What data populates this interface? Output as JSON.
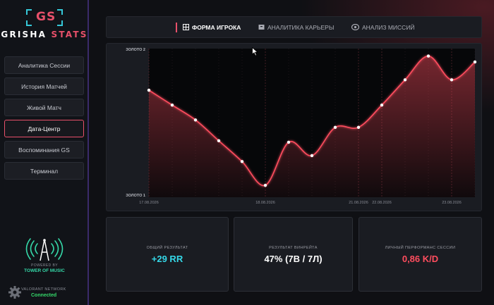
{
  "brand": {
    "gs": "GS",
    "name_part1": "GRISHA ",
    "name_part2": "STATS",
    "colors": {
      "accent": "#e8506a",
      "cyan": "#35c8d8"
    }
  },
  "sidebar": {
    "items": [
      {
        "label": "Аналитика Сессии",
        "active": false
      },
      {
        "label": "История Матчей",
        "active": false
      },
      {
        "label": "Живой Матч",
        "active": false
      },
      {
        "label": "Дата-Центр",
        "active": true
      },
      {
        "label": "Воспоминания GS",
        "active": false
      },
      {
        "label": "Терминал",
        "active": false
      }
    ],
    "powered_by": "POWERED BY",
    "tower": "TOWER OF MUSIC",
    "network_label": "VALORANT NETWORK",
    "network_status": "Connected"
  },
  "tabs": [
    {
      "label": "ФОРМА ИГРОКА",
      "icon": "grid-icon",
      "active": true
    },
    {
      "label": "АНАЛИТИКА КАРЬЕРЫ",
      "icon": "archive-icon",
      "active": false
    },
    {
      "label": "АНАЛИЗ МИССИЙ",
      "icon": "target-icon",
      "active": false
    }
  ],
  "chart_data": {
    "type": "line",
    "y_tick_labels": [
      "ЗОЛОТО 2",
      "ЗОЛОТО 1"
    ],
    "x_tick_labels": [
      "17.08.2026",
      "18.08.2026",
      "21.08.2026",
      "22.08.2026",
      "23.08.2026"
    ],
    "x_tick_indices": [
      0,
      5,
      9,
      10,
      13
    ],
    "series": [
      {
        "values": [
          1.72,
          1.62,
          1.52,
          1.38,
          1.24,
          1.08,
          1.37,
          1.28,
          1.47,
          1.47,
          1.62,
          1.79,
          1.95,
          1.79,
          1.91
        ]
      }
    ],
    "ylim": [
      1.0,
      2.0
    ],
    "line_color": "#ff4d5e",
    "grid": true
  },
  "cards": [
    {
      "label": "ОБЩИЙ РЕЗУЛЬТАТ",
      "value": "+29 RR",
      "color": "#35d8e8"
    },
    {
      "label": "РЕЗУЛЬТАТ ВИНРЕЙТА",
      "value": "47% (7В / 7Л)",
      "color": "#ffffff"
    },
    {
      "label": "ЛИЧНЫЙ ПЕРФОРМАНС СЕССИИ",
      "value": "0,86 K/D",
      "color": "#ff4d5e"
    }
  ]
}
